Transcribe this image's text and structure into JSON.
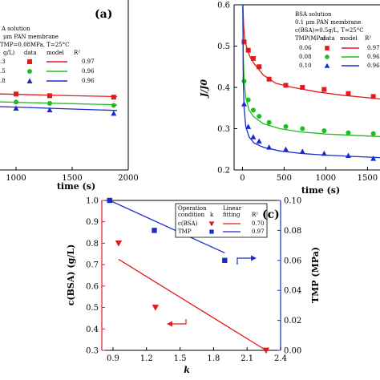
{
  "chart_data": [
    {
      "panel_label": "(a)",
      "type": "scatter",
      "xlabel": "time (s)",
      "ylabel": "",
      "xlim": [
        0,
        2000
      ],
      "ylim": [
        0,
        0.6
      ],
      "x_ticks": [
        "1000",
        "1500",
        "2000"
      ],
      "x_tick_values": [
        1000,
        1500,
        2000
      ],
      "y_ticks": [],
      "legend": {
        "lines": [
          "A solution",
          "μm PAN membrane",
          "TMP=0.08MPa, T=25°C"
        ],
        "header": [
          "g/L)",
          "data",
          "model",
          "R²"
        ],
        "rows": [
          {
            "label": ".3",
            "color": "#e31a1c",
            "marker": "square",
            "r2": "0.97"
          },
          {
            "label": ".5",
            "color": "#22bb22",
            "marker": "circle",
            "r2": "0.96"
          },
          {
            "label": ".8",
            "color": "#1a2bcc",
            "marker": "triangle",
            "r2": "0.96"
          }
        ]
      },
      "series": [
        {
          "color": "#e31a1c",
          "points": [
            [
              1000,
              0.268
            ],
            [
              1300,
              0.262
            ],
            [
              1870,
              0.257
            ]
          ],
          "curve": [
            [
              0,
              0.276
            ],
            [
              500,
              0.272
            ],
            [
              1000,
              0.267
            ],
            [
              1500,
              0.262
            ],
            [
              1900,
              0.259
            ]
          ]
        },
        {
          "color": "#22bb22",
          "points": [
            [
              1000,
              0.24
            ],
            [
              1300,
              0.235
            ],
            [
              1870,
              0.228
            ]
          ],
          "curve": [
            [
              0,
              0.248
            ],
            [
              500,
              0.244
            ],
            [
              1000,
              0.239
            ],
            [
              1500,
              0.234
            ],
            [
              1900,
              0.23
            ]
          ]
        },
        {
          "color": "#1a2bcc",
          "points": [
            [
              1000,
              0.218
            ],
            [
              1300,
              0.212
            ],
            [
              1870,
              0.2
            ]
          ],
          "curve": [
            [
              0,
              0.232
            ],
            [
              500,
              0.228
            ],
            [
              1000,
              0.222
            ],
            [
              1500,
              0.215
            ],
            [
              1900,
              0.21
            ]
          ]
        }
      ]
    },
    {
      "panel_label": "",
      "type": "scatter",
      "xlabel": "time (s)",
      "ylabel": "J/J0",
      "xlim": [
        -100,
        1650
      ],
      "ylim": [
        0.2,
        0.6
      ],
      "x_ticks": [
        "0",
        "500",
        "1000",
        "1500"
      ],
      "x_tick_values": [
        0,
        500,
        1000,
        1500
      ],
      "y_ticks": [
        "0.2",
        "0.3",
        "0.4",
        "0.5",
        "0.6"
      ],
      "y_tick_values": [
        0.2,
        0.3,
        0.4,
        0.5,
        0.6
      ],
      "legend": {
        "lines": [
          "BSA solution",
          "0.1 μm PAN membrane",
          "c(BSA)=0.5g/L, T=25°C"
        ],
        "header": [
          "TMP(MPa)",
          "data",
          "model",
          "R²"
        ],
        "rows": [
          {
            "label": "0.06",
            "color": "#e31a1c",
            "marker": "square",
            "r2": "0.97"
          },
          {
            "label": "0.08",
            "color": "#22bb22",
            "marker": "circle",
            "r2": "0.96"
          },
          {
            "label": "0.10",
            "color": "#1a2bcc",
            "marker": "triangle",
            "r2": "0.96"
          }
        ]
      },
      "series": [
        {
          "color": "#e31a1c",
          "points": [
            [
              20,
              0.51
            ],
            [
              70,
              0.49
            ],
            [
              130,
              0.47
            ],
            [
              200,
              0.45
            ],
            [
              320,
              0.42
            ],
            [
              520,
              0.405
            ],
            [
              720,
              0.4
            ],
            [
              980,
              0.395
            ],
            [
              1270,
              0.385
            ],
            [
              1570,
              0.378
            ]
          ],
          "curve": [
            [
              5,
              0.6
            ],
            [
              15,
              0.545
            ],
            [
              30,
              0.515
            ],
            [
              60,
              0.49
            ],
            [
              100,
              0.47
            ],
            [
              150,
              0.455
            ],
            [
              250,
              0.43
            ],
            [
              400,
              0.41
            ],
            [
              600,
              0.4
            ],
            [
              900,
              0.389
            ],
            [
              1200,
              0.381
            ],
            [
              1650,
              0.372
            ]
          ]
        },
        {
          "color": "#22bb22",
          "points": [
            [
              20,
              0.415
            ],
            [
              70,
              0.37
            ],
            [
              130,
              0.345
            ],
            [
              200,
              0.33
            ],
            [
              320,
              0.315
            ],
            [
              520,
              0.305
            ],
            [
              720,
              0.3
            ],
            [
              980,
              0.295
            ],
            [
              1270,
              0.29
            ],
            [
              1570,
              0.288
            ]
          ],
          "curve": [
            [
              5,
              0.6
            ],
            [
              10,
              0.48
            ],
            [
              20,
              0.415
            ],
            [
              40,
              0.375
            ],
            [
              80,
              0.345
            ],
            [
              130,
              0.33
            ],
            [
              250,
              0.312
            ],
            [
              450,
              0.3
            ],
            [
              700,
              0.292
            ],
            [
              1000,
              0.287
            ],
            [
              1300,
              0.284
            ],
            [
              1650,
              0.281
            ]
          ]
        },
        {
          "color": "#1a2bcc",
          "points": [
            [
              20,
              0.36
            ],
            [
              70,
              0.305
            ],
            [
              130,
              0.28
            ],
            [
              200,
              0.27
            ],
            [
              320,
              0.255
            ],
            [
              520,
              0.25
            ],
            [
              720,
              0.245
            ],
            [
              980,
              0.24
            ],
            [
              1270,
              0.235
            ],
            [
              1570,
              0.228
            ]
          ],
          "curve": [
            [
              5,
              0.6
            ],
            [
              10,
              0.42
            ],
            [
              20,
              0.35
            ],
            [
              40,
              0.305
            ],
            [
              80,
              0.28
            ],
            [
              140,
              0.265
            ],
            [
              250,
              0.255
            ],
            [
              450,
              0.246
            ],
            [
              700,
              0.24
            ],
            [
              1000,
              0.236
            ],
            [
              1300,
              0.233
            ],
            [
              1650,
              0.23
            ]
          ]
        }
      ]
    },
    {
      "panel_label": "(c)",
      "type": "scatter",
      "xlabel": "k",
      "ylabel": "c(BSA) (g/L)",
      "y2label": "TMP (MPa)",
      "xlim": [
        0.8,
        2.4
      ],
      "ylim": [
        0.3,
        1.0
      ],
      "y2lim": [
        0,
        0.1
      ],
      "x_ticks": [
        "0.9",
        "1.2",
        "1.5",
        "1.8",
        "2.1",
        "2.4"
      ],
      "x_tick_values": [
        0.9,
        1.2,
        1.5,
        1.8,
        2.1,
        2.4
      ],
      "y_ticks": [
        "0.3",
        "0.4",
        "0.5",
        "0.6",
        "0.7",
        "0.8",
        "0.9",
        "1.0"
      ],
      "y_tick_values": [
        0.3,
        0.4,
        0.5,
        0.6,
        0.7,
        0.8,
        0.9,
        1.0
      ],
      "y2_ticks": [
        "0.00",
        "0.02",
        "0.04",
        "0.06",
        "0.08",
        "0.10"
      ],
      "y2_tick_values": [
        0,
        0.02,
        0.04,
        0.06,
        0.08,
        0.1
      ],
      "legend": {
        "header": [
          "Operation condition",
          "k",
          "Linear fitting",
          "R²"
        ],
        "rows": [
          {
            "label": "c(BSA)",
            "color": "#e31a1c",
            "marker": "inv-triangle",
            "r2": "0.70"
          },
          {
            "label": "TMP",
            "color": "#1a2bcc",
            "marker": "square",
            "r2": "0.97"
          }
        ]
      },
      "series": [
        {
          "name": "c(BSA)",
          "axis": "left",
          "color": "#e31a1c",
          "points": [
            [
              0.95,
              0.8
            ],
            [
              1.28,
              0.5
            ],
            [
              2.27,
              0.3
            ]
          ],
          "fit": [
            [
              0.95,
              0.725
            ],
            [
              2.27,
              0.3
            ]
          ]
        },
        {
          "name": "TMP",
          "axis": "right",
          "color": "#1a2bcc",
          "points": [
            [
              0.87,
              0.1
            ],
            [
              1.27,
              0.08
            ],
            [
              1.9,
              0.06
            ]
          ],
          "fit": [
            [
              0.87,
              0.1
            ],
            [
              1.9,
              0.065
            ]
          ]
        }
      ]
    }
  ]
}
